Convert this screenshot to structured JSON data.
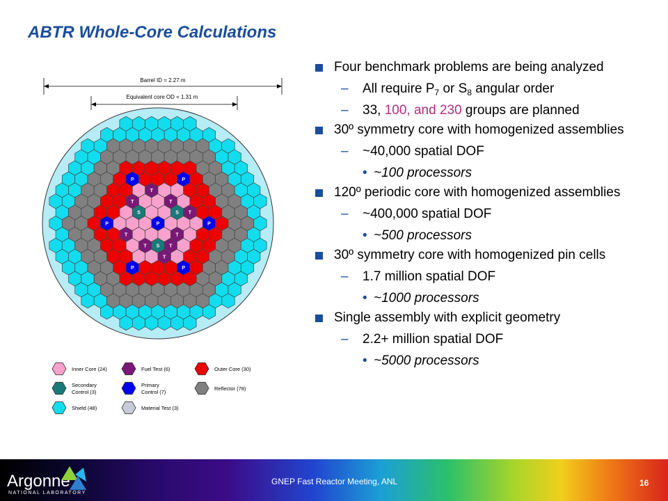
{
  "title": "ABTR Whole-Core Calculations",
  "diagram": {
    "barrel_label": "Barrel ID = 2.27 m",
    "core_label": "Equivalent core OD = 1.31 m",
    "colors": {
      "inner_core": "#f7a1cc",
      "fuel_test": "#7a1878",
      "outer_core": "#ee0000",
      "secondary_control": "#1a7a7a",
      "primary_control": "#0000ee",
      "reflector": "#808080",
      "shield": "#11ddee",
      "material_test": "#c8cbd8",
      "barrel_fill": "#b6ecf5",
      "hex_edge": "#444444"
    },
    "assembly_markers": [
      {
        "q": 0,
        "r": -4,
        "label": "P"
      },
      {
        "q": 4,
        "r": -4,
        "label": "P"
      },
      {
        "q": 4,
        "r": 0,
        "label": "P"
      },
      {
        "q": 0,
        "r": 4,
        "label": "P"
      },
      {
        "q": -4,
        "r": 4,
        "label": "P"
      },
      {
        "q": -4,
        "r": 0,
        "label": "P"
      },
      {
        "q": 0,
        "r": 0,
        "label": "P"
      },
      {
        "q": -1,
        "r": -2,
        "label": "T"
      },
      {
        "q": 1,
        "r": -3,
        "label": "T"
      },
      {
        "q": 2,
        "r": -2,
        "label": "T"
      },
      {
        "q": 0,
        "r": 2,
        "label": "T"
      },
      {
        "q": 3,
        "r": -1,
        "label": "T"
      },
      {
        "q": -3,
        "r": 1,
        "label": "T"
      },
      {
        "q": -2,
        "r": 2,
        "label": "T"
      },
      {
        "q": -1,
        "r": 3,
        "label": "T"
      },
      {
        "q": 1,
        "r": 1,
        "label": "T"
      },
      {
        "q": 2,
        "r": -1,
        "label": "S"
      },
      {
        "q": -1,
        "r": -1,
        "label": "S"
      },
      {
        "q": -1,
        "r": 2,
        "label": "S"
      }
    ],
    "legend": [
      {
        "key": "inner_core",
        "label": "Inner Core (24)"
      },
      {
        "key": "fuel_test",
        "label": "Fuel Test (6)"
      },
      {
        "key": "outer_core",
        "label": "Outer Core (30)"
      },
      {
        "key": "secondary_control",
        "label": "Secondary Control (3)",
        "lines": [
          "Secondary",
          "Control (3)"
        ]
      },
      {
        "key": "primary_control",
        "label": "Primary Control (7)",
        "lines": [
          "Primary",
          "Control (7)"
        ]
      },
      {
        "key": "reflector",
        "label": "Reflector (78)"
      },
      {
        "key": "shield",
        "label": "Shield (48)"
      },
      {
        "key": "material_test",
        "label": "Material Test (3)"
      }
    ]
  },
  "bullets": {
    "b1": "Four benchmark problems are being analyzed",
    "b1_s1_pre": "All require P",
    "b1_s1_sub1": "7",
    "b1_s1_mid": " or S",
    "b1_s1_sub2": "8",
    "b1_s1_post": " angular order",
    "b1_s2_pre": "33, ",
    "b1_s2_hl": "100, and 230",
    "b1_s2_post": " groups are planned",
    "b2": "30º symmetry core with homogenized assemblies",
    "b2_s1": "~40,000 spatial DOF",
    "b2_s1_d": "~100 processors",
    "b3": "120º periodic core with homogenized assemblies",
    "b3_s1": "~400,000 spatial DOF",
    "b3_s1_d": "~500 processors",
    "b4": "30º symmetry core with homogenized pin cells",
    "b4_s1": "1.7 million spatial DOF",
    "b4_s1_d": "~1000 processors",
    "b5": "Single assembly with explicit geometry",
    "b5_s1": "2.2+ million spatial DOF",
    "b5_s1_d": "~5000 processors",
    "dash": "–",
    "dot": "•"
  },
  "footer": {
    "logo_main": "Argonne",
    "logo_sub": "NATIONAL LABORATORY",
    "meeting": "GNEP Fast Reactor Meeting, ANL",
    "page": "16",
    "logo_colors": [
      "#8fcf3c",
      "#2f7fd1",
      "#26b8e8"
    ]
  }
}
